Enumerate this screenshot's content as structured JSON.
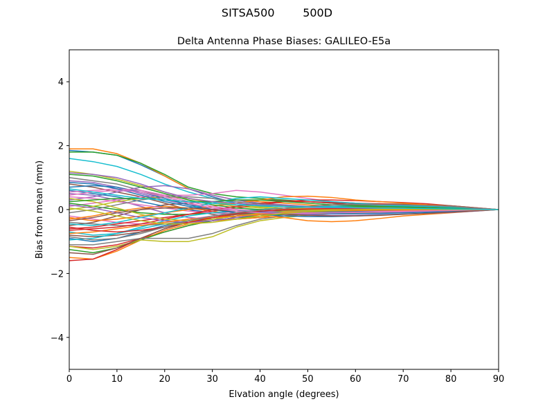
{
  "suptitle": "SITSA500        500D",
  "chart_data": {
    "type": "line",
    "title": "Delta Antenna Phase Biases: GALILEO-E5a",
    "xlabel": "Elvation angle (degrees)",
    "ylabel": "Bias from mean (mm)",
    "xlim": [
      0,
      90
    ],
    "ylim": [
      -5,
      5
    ],
    "xticks": [
      0,
      10,
      20,
      30,
      40,
      50,
      60,
      70,
      80,
      90
    ],
    "yticks": [
      -4,
      -2,
      0,
      2,
      4
    ],
    "ytick_labels": [
      "−4",
      "−2",
      "0",
      "2",
      "4"
    ],
    "grid": false,
    "legend": "none",
    "x": [
      0,
      5,
      10,
      15,
      20,
      25,
      30,
      35,
      40,
      45,
      50,
      55,
      60,
      65,
      70,
      75,
      80,
      85,
      90
    ],
    "colors": [
      "#1f77b4",
      "#ff7f0e",
      "#2ca02c",
      "#d62728",
      "#9467bd",
      "#8c564b",
      "#e377c2",
      "#7f7f7f",
      "#bcbd22",
      "#17becf"
    ],
    "series": [
      {
        "values": [
          1.85,
          1.8,
          1.7,
          1.4,
          1.05,
          0.65,
          0.4,
          0.2,
          0.1,
          0.05,
          0.02,
          0.0,
          -0.02,
          -0.04,
          -0.05,
          -0.05,
          -0.04,
          -0.02,
          0.0
        ]
      },
      {
        "values": [
          1.9,
          1.9,
          1.75,
          1.45,
          1.05,
          0.65,
          0.45,
          0.3,
          0.25,
          0.2,
          0.15,
          0.1,
          0.08,
          0.06,
          0.05,
          0.05,
          0.04,
          0.02,
          0.0
        ]
      },
      {
        "values": [
          1.8,
          1.8,
          1.7,
          1.45,
          1.1,
          0.7,
          0.5,
          0.4,
          0.35,
          0.3,
          0.25,
          0.2,
          0.15,
          0.12,
          0.1,
          0.08,
          0.06,
          0.03,
          0.0
        ]
      },
      {
        "values": [
          -1.15,
          -1.2,
          -1.1,
          -0.9,
          -0.7,
          -0.5,
          -0.35,
          -0.25,
          -0.2,
          -0.15,
          -0.1,
          -0.08,
          -0.06,
          -0.05,
          -0.04,
          -0.03,
          -0.02,
          -0.01,
          0.0
        ]
      },
      {
        "values": [
          0.5,
          0.45,
          0.3,
          0.1,
          -0.1,
          -0.25,
          -0.3,
          -0.3,
          -0.25,
          -0.2,
          -0.15,
          -0.1,
          -0.08,
          -0.06,
          -0.05,
          -0.04,
          -0.03,
          -0.02,
          0.0
        ]
      },
      {
        "values": [
          0.8,
          0.7,
          0.55,
          0.4,
          0.2,
          0.0,
          -0.15,
          -0.25,
          -0.25,
          -0.2,
          -0.15,
          -0.1,
          -0.08,
          -0.06,
          -0.05,
          -0.04,
          -0.03,
          -0.02,
          0.0
        ]
      },
      {
        "values": [
          -0.2,
          -0.3,
          -0.4,
          -0.45,
          -0.4,
          -0.3,
          -0.2,
          -0.1,
          -0.05,
          0.0,
          0.05,
          0.05,
          0.05,
          0.04,
          0.03,
          0.02,
          0.02,
          0.01,
          0.0
        ]
      },
      {
        "values": [
          1.0,
          0.9,
          0.8,
          0.6,
          0.4,
          0.2,
          0.0,
          -0.1,
          -0.15,
          -0.15,
          -0.12,
          -0.1,
          -0.08,
          -0.06,
          -0.05,
          -0.04,
          -0.03,
          -0.02,
          0.0
        ]
      },
      {
        "values": [
          1.2,
          1.1,
          0.95,
          0.75,
          0.55,
          0.35,
          0.2,
          0.1,
          0.05,
          0.0,
          -0.02,
          -0.04,
          -0.05,
          -0.05,
          -0.05,
          -0.04,
          -0.03,
          -0.02,
          0.0
        ]
      },
      {
        "values": [
          1.6,
          1.5,
          1.35,
          1.1,
          0.8,
          0.55,
          0.35,
          0.2,
          0.1,
          0.05,
          0.02,
          0.0,
          -0.02,
          -0.03,
          -0.04,
          -0.04,
          -0.03,
          -0.02,
          0.0
        ]
      },
      {
        "values": [
          -0.9,
          -1.0,
          -0.9,
          -0.7,
          -0.5,
          -0.35,
          -0.25,
          -0.2,
          -0.15,
          -0.12,
          -0.1,
          -0.08,
          -0.06,
          -0.05,
          -0.04,
          -0.03,
          -0.02,
          -0.01,
          0.0
        ]
      },
      {
        "values": [
          -1.5,
          -1.55,
          -1.3,
          -0.95,
          -0.65,
          -0.45,
          -0.35,
          -0.3,
          -0.25,
          -0.2,
          -0.15,
          -0.12,
          -0.1,
          -0.08,
          -0.06,
          -0.05,
          -0.04,
          -0.02,
          0.0
        ]
      },
      {
        "values": [
          -1.25,
          -1.35,
          -1.2,
          -0.95,
          -0.7,
          -0.5,
          -0.35,
          -0.25,
          -0.2,
          -0.15,
          -0.12,
          -0.1,
          -0.08,
          -0.06,
          -0.05,
          -0.04,
          -0.03,
          -0.02,
          0.0
        ]
      },
      {
        "values": [
          -1.6,
          -1.55,
          -1.25,
          -0.9,
          -0.6,
          -0.4,
          -0.25,
          -0.15,
          -0.1,
          -0.08,
          -0.06,
          -0.05,
          -0.05,
          -0.04,
          -0.04,
          -0.03,
          -0.02,
          -0.01,
          0.0
        ]
      },
      {
        "values": [
          0.3,
          0.4,
          0.55,
          0.7,
          0.75,
          0.65,
          0.45,
          0.3,
          0.2,
          0.15,
          0.1,
          0.08,
          0.06,
          0.05,
          0.04,
          0.03,
          0.02,
          0.01,
          0.0
        ]
      },
      {
        "values": [
          -0.5,
          -0.4,
          -0.2,
          0.0,
          0.15,
          0.2,
          0.25,
          0.3,
          0.3,
          0.28,
          0.25,
          0.2,
          0.15,
          0.12,
          0.1,
          0.08,
          0.06,
          0.03,
          0.0
        ]
      },
      {
        "values": [
          0.1,
          0.2,
          0.3,
          0.4,
          0.45,
          0.45,
          0.5,
          0.6,
          0.55,
          0.45,
          0.35,
          0.25,
          0.2,
          0.15,
          0.12,
          0.1,
          0.08,
          0.04,
          0.0
        ]
      },
      {
        "values": [
          -1.1,
          -1.1,
          -1.0,
          -0.9,
          -0.9,
          -0.9,
          -0.75,
          -0.5,
          -0.3,
          -0.2,
          -0.15,
          -0.1,
          -0.08,
          -0.06,
          -0.05,
          -0.04,
          -0.03,
          -0.02,
          0.0
        ]
      },
      {
        "values": [
          -1.15,
          -1.25,
          -1.15,
          -0.95,
          -1.0,
          -1.0,
          -0.85,
          -0.55,
          -0.35,
          -0.25,
          -0.18,
          -0.12,
          -0.08,
          -0.06,
          -0.05,
          -0.04,
          -0.03,
          -0.02,
          0.0
        ]
      },
      {
        "values": [
          -0.7,
          -0.8,
          -0.75,
          -0.6,
          -0.45,
          -0.35,
          -0.25,
          -0.2,
          -0.15,
          -0.1,
          -0.08,
          -0.06,
          -0.05,
          -0.04,
          -0.03,
          -0.02,
          -0.02,
          -0.01,
          0.0
        ]
      },
      {
        "values": [
          0.6,
          0.5,
          0.4,
          0.25,
          0.1,
          0.0,
          -0.1,
          -0.15,
          -0.15,
          -0.12,
          -0.1,
          -0.08,
          -0.06,
          -0.05,
          -0.04,
          -0.03,
          -0.02,
          -0.01,
          0.0
        ]
      },
      {
        "values": [
          -0.3,
          -0.2,
          -0.05,
          0.05,
          0.1,
          0.05,
          -0.05,
          -0.15,
          -0.2,
          -0.25,
          -0.35,
          -0.38,
          -0.35,
          -0.28,
          -0.2,
          -0.15,
          -0.1,
          -0.05,
          0.0
        ]
      },
      {
        "values": [
          0.2,
          0.1,
          0.0,
          -0.1,
          -0.15,
          -0.15,
          -0.1,
          -0.05,
          0.0,
          0.05,
          0.08,
          0.1,
          0.1,
          0.09,
          0.08,
          0.06,
          0.05,
          0.02,
          0.0
        ]
      },
      {
        "values": [
          -0.6,
          -0.55,
          -0.45,
          -0.35,
          -0.25,
          -0.15,
          -0.05,
          0.05,
          0.15,
          0.25,
          0.3,
          0.3,
          0.28,
          0.25,
          0.22,
          0.18,
          0.12,
          0.06,
          0.0
        ]
      },
      {
        "values": [
          0.9,
          0.85,
          0.7,
          0.5,
          0.3,
          0.15,
          0.05,
          0.0,
          -0.05,
          -0.1,
          -0.15,
          -0.18,
          -0.18,
          -0.16,
          -0.14,
          -0.12,
          -0.09,
          -0.05,
          0.0
        ]
      },
      {
        "values": [
          -0.8,
          -0.85,
          -0.8,
          -0.7,
          -0.55,
          -0.4,
          -0.3,
          -0.2,
          -0.1,
          0.0,
          0.1,
          0.15,
          0.18,
          0.18,
          0.17,
          0.15,
          0.12,
          0.06,
          0.0
        ]
      },
      {
        "values": [
          0.4,
          0.35,
          0.25,
          0.15,
          0.05,
          -0.05,
          -0.1,
          -0.12,
          -0.1,
          -0.08,
          -0.05,
          -0.03,
          -0.02,
          -0.01,
          -0.01,
          -0.01,
          -0.01,
          0.0,
          0.0
        ]
      },
      {
        "values": [
          -0.4,
          -0.45,
          -0.5,
          -0.5,
          -0.45,
          -0.35,
          -0.25,
          -0.15,
          -0.1,
          -0.05,
          0.0,
          0.02,
          0.03,
          0.03,
          0.02,
          0.02,
          0.01,
          0.01,
          0.0
        ]
      },
      {
        "values": [
          0.0,
          0.1,
          0.25,
          0.35,
          0.4,
          0.35,
          0.25,
          0.15,
          0.08,
          0.05,
          0.03,
          0.02,
          0.01,
          0.01,
          0.01,
          0.0,
          0.0,
          0.0,
          0.0
        ]
      },
      {
        "values": [
          -0.95,
          -0.9,
          -0.75,
          -0.55,
          -0.35,
          -0.2,
          -0.1,
          -0.05,
          0.0,
          0.05,
          0.08,
          0.1,
          0.12,
          0.12,
          0.11,
          0.1,
          0.08,
          0.04,
          0.0
        ]
      },
      {
        "values": [
          0.7,
          0.75,
          0.7,
          0.55,
          0.35,
          0.15,
          0.0,
          -0.1,
          -0.15,
          -0.2,
          -0.22,
          -0.22,
          -0.2,
          -0.17,
          -0.14,
          -0.11,
          -0.08,
          -0.04,
          0.0
        ]
      },
      {
        "values": [
          -0.25,
          -0.35,
          -0.3,
          -0.2,
          -0.1,
          0.0,
          0.1,
          0.2,
          0.3,
          0.4,
          0.42,
          0.38,
          0.3,
          0.25,
          0.2,
          0.15,
          0.1,
          0.05,
          0.0
        ]
      },
      {
        "values": [
          1.1,
          1.05,
          0.9,
          0.7,
          0.5,
          0.3,
          0.15,
          0.05,
          0.0,
          -0.05,
          -0.08,
          -0.1,
          -0.1,
          -0.09,
          -0.08,
          -0.06,
          -0.05,
          -0.02,
          0.0
        ]
      },
      {
        "values": [
          -0.65,
          -0.6,
          -0.55,
          -0.45,
          -0.3,
          -0.15,
          0.0,
          0.1,
          0.2,
          0.25,
          0.25,
          0.22,
          0.2,
          0.18,
          0.15,
          0.12,
          0.09,
          0.05,
          0.0
        ]
      },
      {
        "values": [
          0.15,
          0.05,
          -0.1,
          -0.25,
          -0.35,
          -0.4,
          -0.35,
          -0.25,
          -0.15,
          -0.08,
          -0.04,
          -0.02,
          -0.01,
          -0.01,
          -0.01,
          0.0,
          0.0,
          0.0,
          0.0
        ]
      },
      {
        "values": [
          -1.35,
          -1.4,
          -1.2,
          -0.9,
          -0.6,
          -0.4,
          -0.25,
          -0.15,
          -0.08,
          -0.04,
          -0.02,
          -0.01,
          0.0,
          0.0,
          0.0,
          0.0,
          0.0,
          0.0,
          0.0
        ]
      },
      {
        "values": [
          0.55,
          0.6,
          0.65,
          0.6,
          0.45,
          0.25,
          0.1,
          0.0,
          -0.05,
          -0.08,
          -0.1,
          -0.1,
          -0.09,
          -0.08,
          -0.07,
          -0.06,
          -0.04,
          -0.02,
          0.0
        ]
      },
      {
        "values": [
          -0.1,
          0.0,
          0.15,
          0.3,
          0.4,
          0.4,
          0.35,
          0.25,
          0.18,
          0.12,
          0.08,
          0.06,
          0.05,
          0.04,
          0.03,
          0.03,
          0.02,
          0.01,
          0.0
        ]
      },
      {
        "values": [
          0.35,
          0.25,
          0.05,
          -0.15,
          -0.3,
          -0.35,
          -0.3,
          -0.2,
          -0.12,
          -0.06,
          -0.02,
          0.0,
          0.01,
          0.01,
          0.01,
          0.01,
          0.0,
          0.0,
          0.0
        ]
      },
      {
        "values": [
          -0.45,
          -0.5,
          -0.4,
          -0.25,
          -0.1,
          0.05,
          0.2,
          0.35,
          0.4,
          0.35,
          0.3,
          0.25,
          0.2,
          0.16,
          0.13,
          0.1,
          0.07,
          0.04,
          0.0
        ]
      },
      {
        "values": [
          0.85,
          0.8,
          0.65,
          0.45,
          0.25,
          0.1,
          0.0,
          -0.05,
          -0.08,
          -0.1,
          -0.12,
          -0.13,
          -0.13,
          -0.12,
          -0.1,
          -0.08,
          -0.06,
          -0.03,
          0.0
        ]
      },
      {
        "values": [
          -0.75,
          -0.7,
          -0.6,
          -0.5,
          -0.4,
          -0.3,
          -0.25,
          -0.2,
          -0.15,
          -0.1,
          -0.06,
          -0.04,
          -0.03,
          -0.02,
          -0.02,
          -0.01,
          -0.01,
          0.0,
          0.0
        ]
      },
      {
        "values": [
          0.25,
          0.3,
          0.35,
          0.35,
          0.3,
          0.25,
          0.25,
          0.3,
          0.3,
          0.25,
          0.2,
          0.15,
          0.12,
          0.1,
          0.08,
          0.06,
          0.04,
          0.02,
          0.0
        ]
      },
      {
        "values": [
          -0.55,
          -0.65,
          -0.7,
          -0.65,
          -0.55,
          -0.4,
          -0.25,
          -0.12,
          -0.05,
          0.0,
          0.02,
          0.03,
          0.03,
          0.03,
          0.02,
          0.02,
          0.01,
          0.01,
          0.0
        ]
      },
      {
        "values": [
          1.15,
          1.1,
          1.0,
          0.8,
          0.55,
          0.35,
          0.25,
          0.2,
          0.15,
          0.1,
          0.08,
          0.06,
          0.05,
          0.04,
          0.03,
          0.03,
          0.02,
          0.01,
          0.0
        ]
      },
      {
        "values": [
          -0.35,
          -0.25,
          -0.1,
          0.0,
          0.05,
          0.05,
          0.0,
          -0.05,
          -0.1,
          -0.15,
          -0.18,
          -0.2,
          -0.2,
          -0.18,
          -0.15,
          -0.12,
          -0.08,
          -0.04,
          0.0
        ]
      },
      {
        "values": [
          0.45,
          0.55,
          0.6,
          0.55,
          0.4,
          0.2,
          0.05,
          -0.05,
          -0.1,
          -0.12,
          -0.12,
          -0.1,
          -0.08,
          -0.06,
          -0.05,
          -0.04,
          -0.03,
          -0.01,
          0.0
        ]
      },
      {
        "values": [
          -0.85,
          -0.95,
          -0.9,
          -0.75,
          -0.55,
          -0.35,
          -0.2,
          -0.1,
          -0.02,
          0.05,
          0.1,
          0.14,
          0.16,
          0.16,
          0.15,
          0.13,
          0.1,
          0.05,
          0.0
        ]
      },
      {
        "values": [
          0.05,
          -0.05,
          -0.2,
          -0.35,
          -0.45,
          -0.45,
          -0.4,
          -0.3,
          -0.2,
          -0.12,
          -0.06,
          -0.02,
          0.0,
          0.01,
          0.01,
          0.01,
          0.0,
          0.0,
          0.0
        ]
      },
      {
        "values": [
          0.65,
          0.55,
          0.45,
          0.35,
          0.3,
          0.25,
          0.2,
          0.15,
          0.12,
          0.1,
          0.08,
          0.07,
          0.06,
          0.05,
          0.04,
          0.03,
          0.02,
          0.01,
          0.0
        ]
      }
    ]
  }
}
